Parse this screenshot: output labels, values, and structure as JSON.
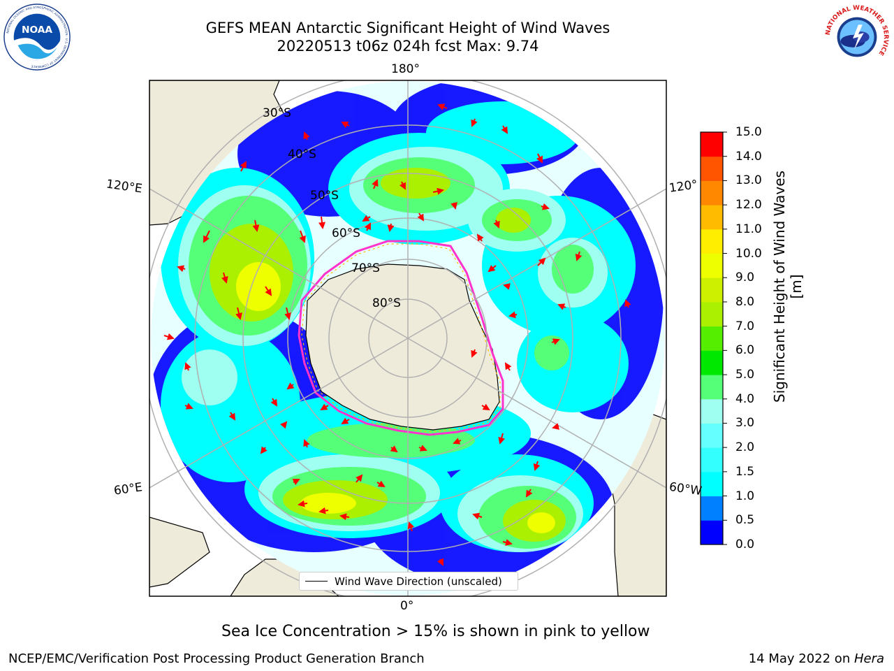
{
  "header": {
    "title_line1": "GEFS MEAN Antarctic Significant Height of Wind Waves",
    "title_line2": "20220513 t06z 024h fcst   Max: 9.74"
  },
  "logos": {
    "left": "NOAA",
    "left_ring_text": "NATIONAL OCEANIC AND ATMOSPHERIC ADMINISTRATION · U.S. DEPARTMENT OF COMMERCE",
    "right_ring_text": "NATIONAL WEATHER SERVICE"
  },
  "map": {
    "projection": "south-polar-stereographic",
    "longitude_labels": {
      "top": "180°",
      "bottom": "0°",
      "upper_left": "120°E",
      "lower_left": "60°E",
      "upper_right": "120°",
      "lower_right": "60°W"
    },
    "latitude_labels": [
      "30°S",
      "40°S",
      "50°S",
      "60°S",
      "70°S",
      "80°S"
    ],
    "legend": "Wind Wave Direction (unscaled)",
    "colors": {
      "land": "#efebdb",
      "ice_edge": "#ff33cc",
      "arrow": "#ff0000",
      "grid": "#b0b0b0"
    }
  },
  "colorbar": {
    "label": "Significant Height of Wind Waves [m]",
    "ticks": [
      "0.0",
      "0.5",
      "1.0",
      "1.5",
      "2.0",
      "3.0",
      "4.0",
      "5.0",
      "6.0",
      "7.0",
      "8.0",
      "9.0",
      "10.0",
      "11.0",
      "12.0",
      "13.0",
      "14.0",
      "15.0"
    ],
    "colors": [
      "#0000ff",
      "#0080ff",
      "#00ffff",
      "#33ffff",
      "#66ffff",
      "#9ffff0",
      "#55ff77",
      "#00e800",
      "#55ee00",
      "#aaf000",
      "#ccf000",
      "#eeff00",
      "#ffee00",
      "#ffbb00",
      "#ff8800",
      "#ff5500",
      "#ff0000"
    ]
  },
  "footer": {
    "note": "Sea Ice Concentration > 15% is shown in pink to yellow",
    "left": "NCEP/EMC/Verification Post Processing Product Generation Branch",
    "date": "14 May 2022 on ",
    "machine": "Hera"
  }
}
